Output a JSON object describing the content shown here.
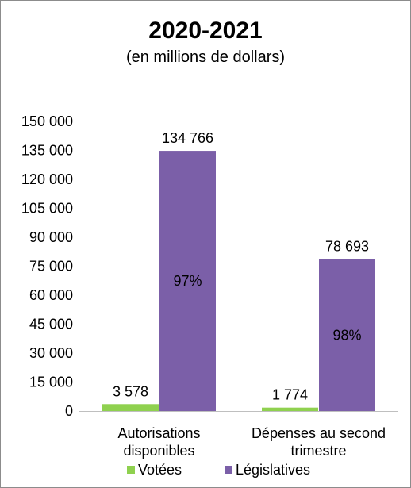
{
  "chart_data": {
    "type": "bar",
    "title": "2020-2021",
    "subtitle": "(en millions  de dollars)",
    "categories": [
      [
        "Autorisations",
        "disponibles"
      ],
      [
        "Dépenses au second",
        "trimestre"
      ]
    ],
    "series": [
      {
        "name": "Votées",
        "color": "#8fd14f",
        "values": [
          3578,
          1774
        ],
        "labels": [
          "3 578",
          "1 774"
        ]
      },
      {
        "name": "Législatives",
        "color": "#7b5fa8",
        "values": [
          134766,
          78693
        ],
        "labels": [
          "134 766",
          "78 693"
        ]
      }
    ],
    "inner_labels": [
      "97%",
      "98%"
    ],
    "ylim": [
      0,
      150000
    ],
    "yticks": [
      0,
      15000,
      30000,
      45000,
      60000,
      75000,
      90000,
      105000,
      120000,
      135000,
      150000
    ],
    "ytick_labels": [
      "0",
      "15 000",
      "30 000",
      "45 000",
      "60 000",
      "75 000",
      "90 000",
      "105 000",
      "120 000",
      "135 000",
      "150 000"
    ],
    "grid": false,
    "legend": "bottom"
  }
}
